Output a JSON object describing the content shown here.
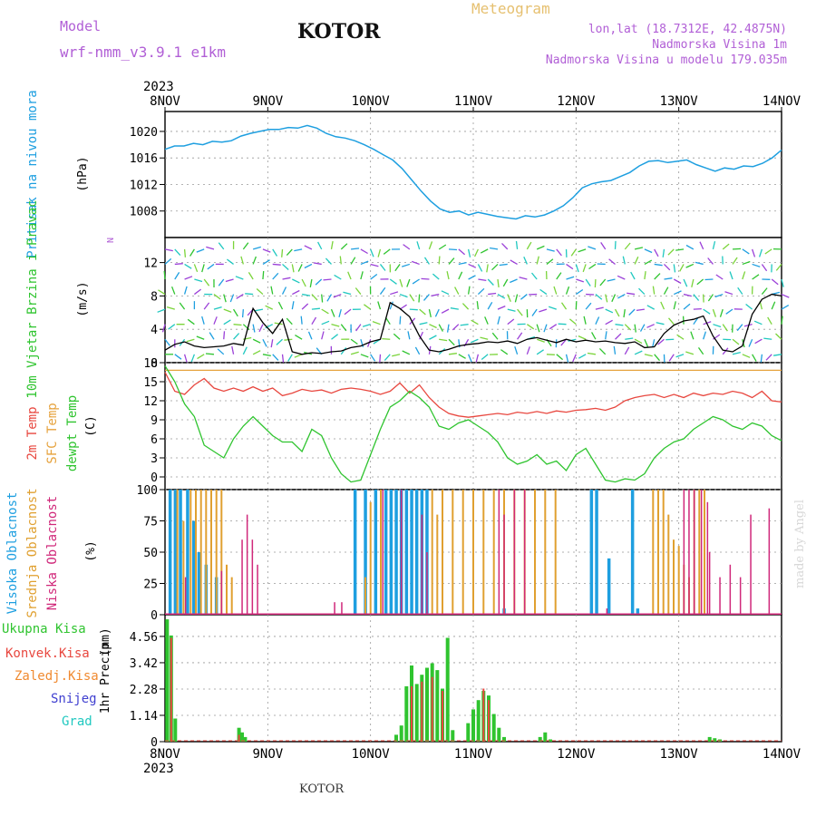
{
  "header": {
    "model_label": "Model",
    "model_name": "wrf-nmm_v3.9.1 e1km",
    "city": "KOTOR",
    "title": "Meteogram",
    "lonlat": "lon,lat (18.7312E, 42.4875N)",
    "elevation": "Nadmorska Visina 1m",
    "model_elevation": "Nadmorska Visina u modelu 179.035m",
    "footer_city": "KOTOR",
    "credit": "made by Angel",
    "year": "2023"
  },
  "colors": {
    "pressure": "#1e9fe0",
    "temp2m": "#e8473f",
    "sfc_temp": "#e6a23c",
    "dewpoint": "#2fc42f",
    "high_cloud": "#1e9fe0",
    "mid_cloud": "#e0a030",
    "low_cloud": "#d0287a",
    "precip_total": "#2fc42f",
    "precip_conv": "#e8473f"
  },
  "chart_data": [
    {
      "type": "line",
      "panel": "pressure",
      "ylabel": "Pritisak na nivou mora",
      "unit": "(hPa)",
      "ylim": [
        1004,
        1023
      ],
      "yticks": [
        1008,
        1012,
        1016,
        1020
      ],
      "x_day_labels": [
        "8NOV",
        "9NOV",
        "10NOV",
        "11NOV",
        "12NOV",
        "13NOV",
        "14NOV"
      ],
      "series": [
        {
          "values": [
            1017.3,
            1017.8,
            1017.8,
            1018.2,
            1018.0,
            1018.5,
            1018.4,
            1018.6,
            1019.3,
            1019.7,
            1020.0,
            1020.3,
            1020.3,
            1020.6,
            1020.5,
            1020.9,
            1020.5,
            1019.7,
            1019.2,
            1019.0,
            1018.6,
            1018.0,
            1017.3,
            1016.5,
            1015.7,
            1014.4,
            1012.7,
            1011.0,
            1009.5,
            1008.3,
            1007.8,
            1008.0,
            1007.4,
            1007.8,
            1007.5,
            1007.2,
            1007.0,
            1006.8,
            1007.3,
            1007.1,
            1007.4,
            1008.0,
            1008.8,
            1010.0,
            1011.5,
            1012.1,
            1012.4,
            1012.6,
            1013.2,
            1013.8,
            1014.8,
            1015.5,
            1015.6,
            1015.3,
            1015.5,
            1015.7,
            1015.0,
            1014.5,
            1014.0,
            1014.5,
            1014.3,
            1014.8,
            1014.7,
            1015.2,
            1016.0,
            1017.2
          ]
        }
      ]
    },
    {
      "type": "line",
      "panel": "wind",
      "ylabel": "10m Vjetar Brzina i Pravac",
      "unit": "(m/s)",
      "ylim": [
        0,
        15
      ],
      "yticks": [
        0,
        4,
        8,
        12
      ],
      "legend_compass": "N",
      "series": [
        {
          "values": [
            1.5,
            2.2,
            2.5,
            2.0,
            1.8,
            1.9,
            2.0,
            2.3,
            2.1,
            6.5,
            4.8,
            3.5,
            5.2,
            1.3,
            1.0,
            1.2,
            1.1,
            1.3,
            1.4,
            1.8,
            2.0,
            2.5,
            2.8,
            7.2,
            6.5,
            5.5,
            3.2,
            1.5,
            1.3,
            1.6,
            2.0,
            2.2,
            2.3,
            2.5,
            2.4,
            2.6,
            2.3,
            2.8,
            3.0,
            2.7,
            2.4,
            2.8,
            2.5,
            2.7,
            2.5,
            2.6,
            2.4,
            2.3,
            2.5,
            1.8,
            1.9,
            3.5,
            4.5,
            5.0,
            5.2,
            5.6,
            3.2,
            1.5,
            1.3,
            2.0,
            5.8,
            7.6,
            8.2,
            8.0
          ]
        }
      ]
    },
    {
      "type": "line",
      "panel": "temperature",
      "ylabel_temp": "2m Temp",
      "ylabel_sfc": "SFC Temp",
      "ylabel_dew": "dewpt Temp",
      "unit": "(C)",
      "ylim": [
        -2,
        18
      ],
      "yticks": [
        0,
        3,
        6,
        9,
        12,
        15,
        18
      ],
      "series": [
        {
          "name": "2m Temp",
          "values": [
            16.5,
            13.5,
            13.0,
            14.5,
            15.5,
            14.0,
            13.5,
            14.0,
            13.5,
            14.2,
            13.5,
            14.0,
            12.8,
            13.2,
            13.8,
            13.5,
            13.7,
            13.2,
            13.8,
            14.0,
            13.8,
            13.5,
            13.0,
            13.5,
            14.8,
            13.2,
            14.5,
            12.5,
            11.0,
            10.0,
            9.6,
            9.4,
            9.6,
            9.8,
            10.0,
            9.8,
            10.2,
            10.0,
            10.3,
            10.0,
            10.4,
            10.2,
            10.5,
            10.6,
            10.8,
            10.5,
            11.0,
            12.0,
            12.5,
            12.8,
            13.0,
            12.5,
            13.0,
            12.5,
            13.2,
            12.8,
            13.2,
            13.0,
            13.5,
            13.2,
            12.5,
            13.5,
            12.0,
            11.8
          ]
        },
        {
          "name": "SFC Temp",
          "values": [
            16.8,
            16.8
          ]
        },
        {
          "name": "dewpt Temp",
          "values": [
            17.5,
            15.0,
            11.5,
            9.5,
            5.0,
            4.0,
            3.0,
            6.0,
            8.0,
            9.5,
            8.0,
            6.5,
            5.5,
            5.5,
            4.0,
            7.5,
            6.5,
            3.0,
            0.5,
            -0.8,
            -0.5,
            3.5,
            7.5,
            11.0,
            12.0,
            13.5,
            12.5,
            11.0,
            8.0,
            7.5,
            8.5,
            9.0,
            8.0,
            7.0,
            5.5,
            3.0,
            2.0,
            2.5,
            3.5,
            2.0,
            2.5,
            1.0,
            3.5,
            4.5,
            2.0,
            -0.5,
            -0.8,
            -0.3,
            -0.5,
            0.5,
            3.0,
            4.5,
            5.5,
            6.0,
            7.5,
            8.5,
            9.5,
            9.0,
            8.0,
            7.5,
            8.5,
            8.0,
            6.5,
            5.7
          ]
        }
      ]
    },
    {
      "type": "bar",
      "panel": "clouds",
      "ylabel_high": "Visoka Oblacnost",
      "ylabel_mid": "Srednja Oblacnost",
      "ylabel_low": "Niska Oblacnost",
      "unit": "(%)",
      "ylim": [
        0,
        100
      ],
      "yticks": [
        0,
        25,
        50,
        75,
        100
      ],
      "series": [
        {
          "name": "Visoka Oblacnost",
          "points": [
            [
              0.05,
              100
            ],
            [
              0.1,
              100
            ],
            [
              0.15,
              100
            ],
            [
              0.22,
              100
            ],
            [
              0.28,
              75
            ],
            [
              0.33,
              50
            ],
            [
              0.4,
              40
            ],
            [
              0.5,
              30
            ],
            [
              1.85,
              100
            ],
            [
              1.95,
              100
            ],
            [
              2.05,
              100
            ],
            [
              2.15,
              100
            ],
            [
              2.2,
              100
            ],
            [
              2.25,
              100
            ],
            [
              2.3,
              100
            ],
            [
              2.35,
              100
            ],
            [
              2.4,
              100
            ],
            [
              2.45,
              100
            ],
            [
              2.5,
              100
            ],
            [
              2.55,
              100
            ],
            [
              3.3,
              5
            ],
            [
              4.15,
              100
            ],
            [
              4.2,
              100
            ],
            [
              4.32,
              45
            ],
            [
              4.55,
              100
            ],
            [
              4.6,
              5
            ]
          ]
        },
        {
          "name": "Srednja Oblacnost",
          "points": [
            [
              0.12,
              100
            ],
            [
              0.18,
              75
            ],
            [
              0.25,
              100
            ],
            [
              0.3,
              100
            ],
            [
              0.35,
              100
            ],
            [
              0.4,
              100
            ],
            [
              0.45,
              100
            ],
            [
              0.5,
              100
            ],
            [
              0.55,
              100
            ],
            [
              0.6,
              40
            ],
            [
              0.65,
              30
            ],
            [
              1.95,
              30
            ],
            [
              2.0,
              90
            ],
            [
              2.1,
              100
            ],
            [
              2.6,
              100
            ],
            [
              2.65,
              80
            ],
            [
              2.7,
              100
            ],
            [
              2.8,
              100
            ],
            [
              2.9,
              100
            ],
            [
              3.0,
              100
            ],
            [
              3.1,
              100
            ],
            [
              3.2,
              100
            ],
            [
              3.3,
              100
            ],
            [
              3.4,
              100
            ],
            [
              3.5,
              100
            ],
            [
              3.6,
              100
            ],
            [
              3.7,
              100
            ],
            [
              3.8,
              100
            ],
            [
              4.75,
              100
            ],
            [
              4.8,
              100
            ],
            [
              4.85,
              100
            ],
            [
              4.9,
              80
            ],
            [
              4.95,
              60
            ],
            [
              5.0,
              55
            ],
            [
              5.05,
              40
            ],
            [
              5.1,
              30
            ],
            [
              5.15,
              100
            ],
            [
              5.2,
              100
            ],
            [
              5.25,
              100
            ]
          ]
        },
        {
          "name": "Niska Oblacnost",
          "points": [
            [
              0.2,
              30
            ],
            [
              0.55,
              35
            ],
            [
              0.75,
              60
            ],
            [
              0.8,
              80
            ],
            [
              0.85,
              60
            ],
            [
              0.9,
              40
            ],
            [
              1.65,
              10
            ],
            [
              1.72,
              10
            ],
            [
              2.12,
              100
            ],
            [
              2.3,
              100
            ],
            [
              2.5,
              80
            ],
            [
              2.55,
              50
            ],
            [
              3.25,
              100
            ],
            [
              3.3,
              80
            ],
            [
              3.4,
              100
            ],
            [
              3.5,
              100
            ],
            [
              4.3,
              5
            ],
            [
              5.05,
              100
            ],
            [
              5.1,
              100
            ],
            [
              5.15,
              100
            ],
            [
              5.22,
              100
            ],
            [
              5.28,
              90
            ],
            [
              5.3,
              50
            ],
            [
              5.4,
              30
            ],
            [
              5.5,
              40
            ],
            [
              5.6,
              30
            ],
            [
              5.7,
              80
            ],
            [
              5.88,
              85
            ]
          ]
        }
      ]
    },
    {
      "type": "bar",
      "panel": "precipitation",
      "ylabel": "1hr Precip",
      "unit": "(mm)",
      "ylim": [
        0,
        5.5
      ],
      "yticks": [
        0,
        1.14,
        2.28,
        3.42,
        4.56
      ],
      "legend": [
        "Ukupna Kisa",
        "Konvek.Kisa",
        "Zaledj.Kisa",
        "Snijeg",
        "Grad"
      ],
      "series": [
        {
          "name": "Ukupna Kisa",
          "points": [
            [
              0.02,
              5.3
            ],
            [
              0.06,
              4.6
            ],
            [
              0.1,
              1.0
            ],
            [
              0.72,
              0.6
            ],
            [
              0.75,
              0.4
            ],
            [
              0.78,
              0.2
            ],
            [
              2.25,
              0.3
            ],
            [
              2.3,
              0.7
            ],
            [
              2.35,
              2.4
            ],
            [
              2.4,
              3.3
            ],
            [
              2.45,
              2.5
            ],
            [
              2.5,
              2.9
            ],
            [
              2.55,
              3.2
            ],
            [
              2.6,
              3.4
            ],
            [
              2.65,
              3.1
            ],
            [
              2.7,
              2.3
            ],
            [
              2.75,
              4.5
            ],
            [
              2.8,
              0.5
            ],
            [
              2.95,
              0.8
            ],
            [
              3.0,
              1.4
            ],
            [
              3.05,
              1.8
            ],
            [
              3.1,
              2.2
            ],
            [
              3.15,
              2.0
            ],
            [
              3.2,
              1.2
            ],
            [
              3.25,
              0.6
            ],
            [
              3.3,
              0.2
            ],
            [
              3.65,
              0.2
            ],
            [
              3.7,
              0.4
            ],
            [
              3.75,
              0.1
            ],
            [
              5.3,
              0.2
            ],
            [
              5.35,
              0.15
            ],
            [
              5.4,
              0.1
            ]
          ]
        },
        {
          "name": "Konvek.Kisa",
          "points": [
            [
              0.06,
              4.5
            ],
            [
              0.72,
              0.3
            ],
            [
              2.4,
              2.4
            ],
            [
              2.5,
              2.6
            ],
            [
              2.6,
              2.8
            ],
            [
              2.7,
              2.2
            ],
            [
              3.1,
              2.3
            ],
            [
              3.15,
              1.8
            ]
          ]
        }
      ]
    }
  ]
}
